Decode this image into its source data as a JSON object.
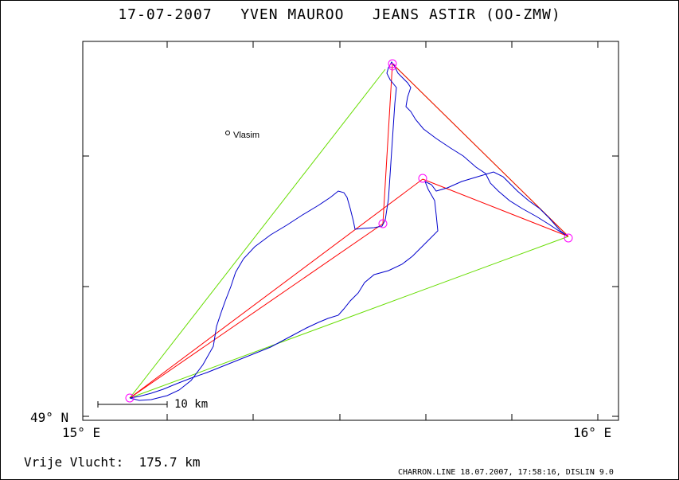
{
  "header": {
    "title": "17-07-2007   YVEN MAUROO   JEANS ASTIR (OO-ZMW)"
  },
  "map": {
    "lat_label": "49° N",
    "lon_left_label": "15° E",
    "lon_right_label": "16° E",
    "city": "Vlasim",
    "scale_label": "10 km"
  },
  "summary": {
    "flight_label": "Vrije Vlucht:",
    "distance": "175.7 km"
  },
  "footer": {
    "program": "CHARRON.LINE 18.07.2007, 17:58:16, DISLIN 9.0"
  },
  "colors": {
    "track": "#0000cc",
    "legs": "#ff0000",
    "closing": "#66dd00",
    "turnpoint": "#ff00ff"
  }
}
